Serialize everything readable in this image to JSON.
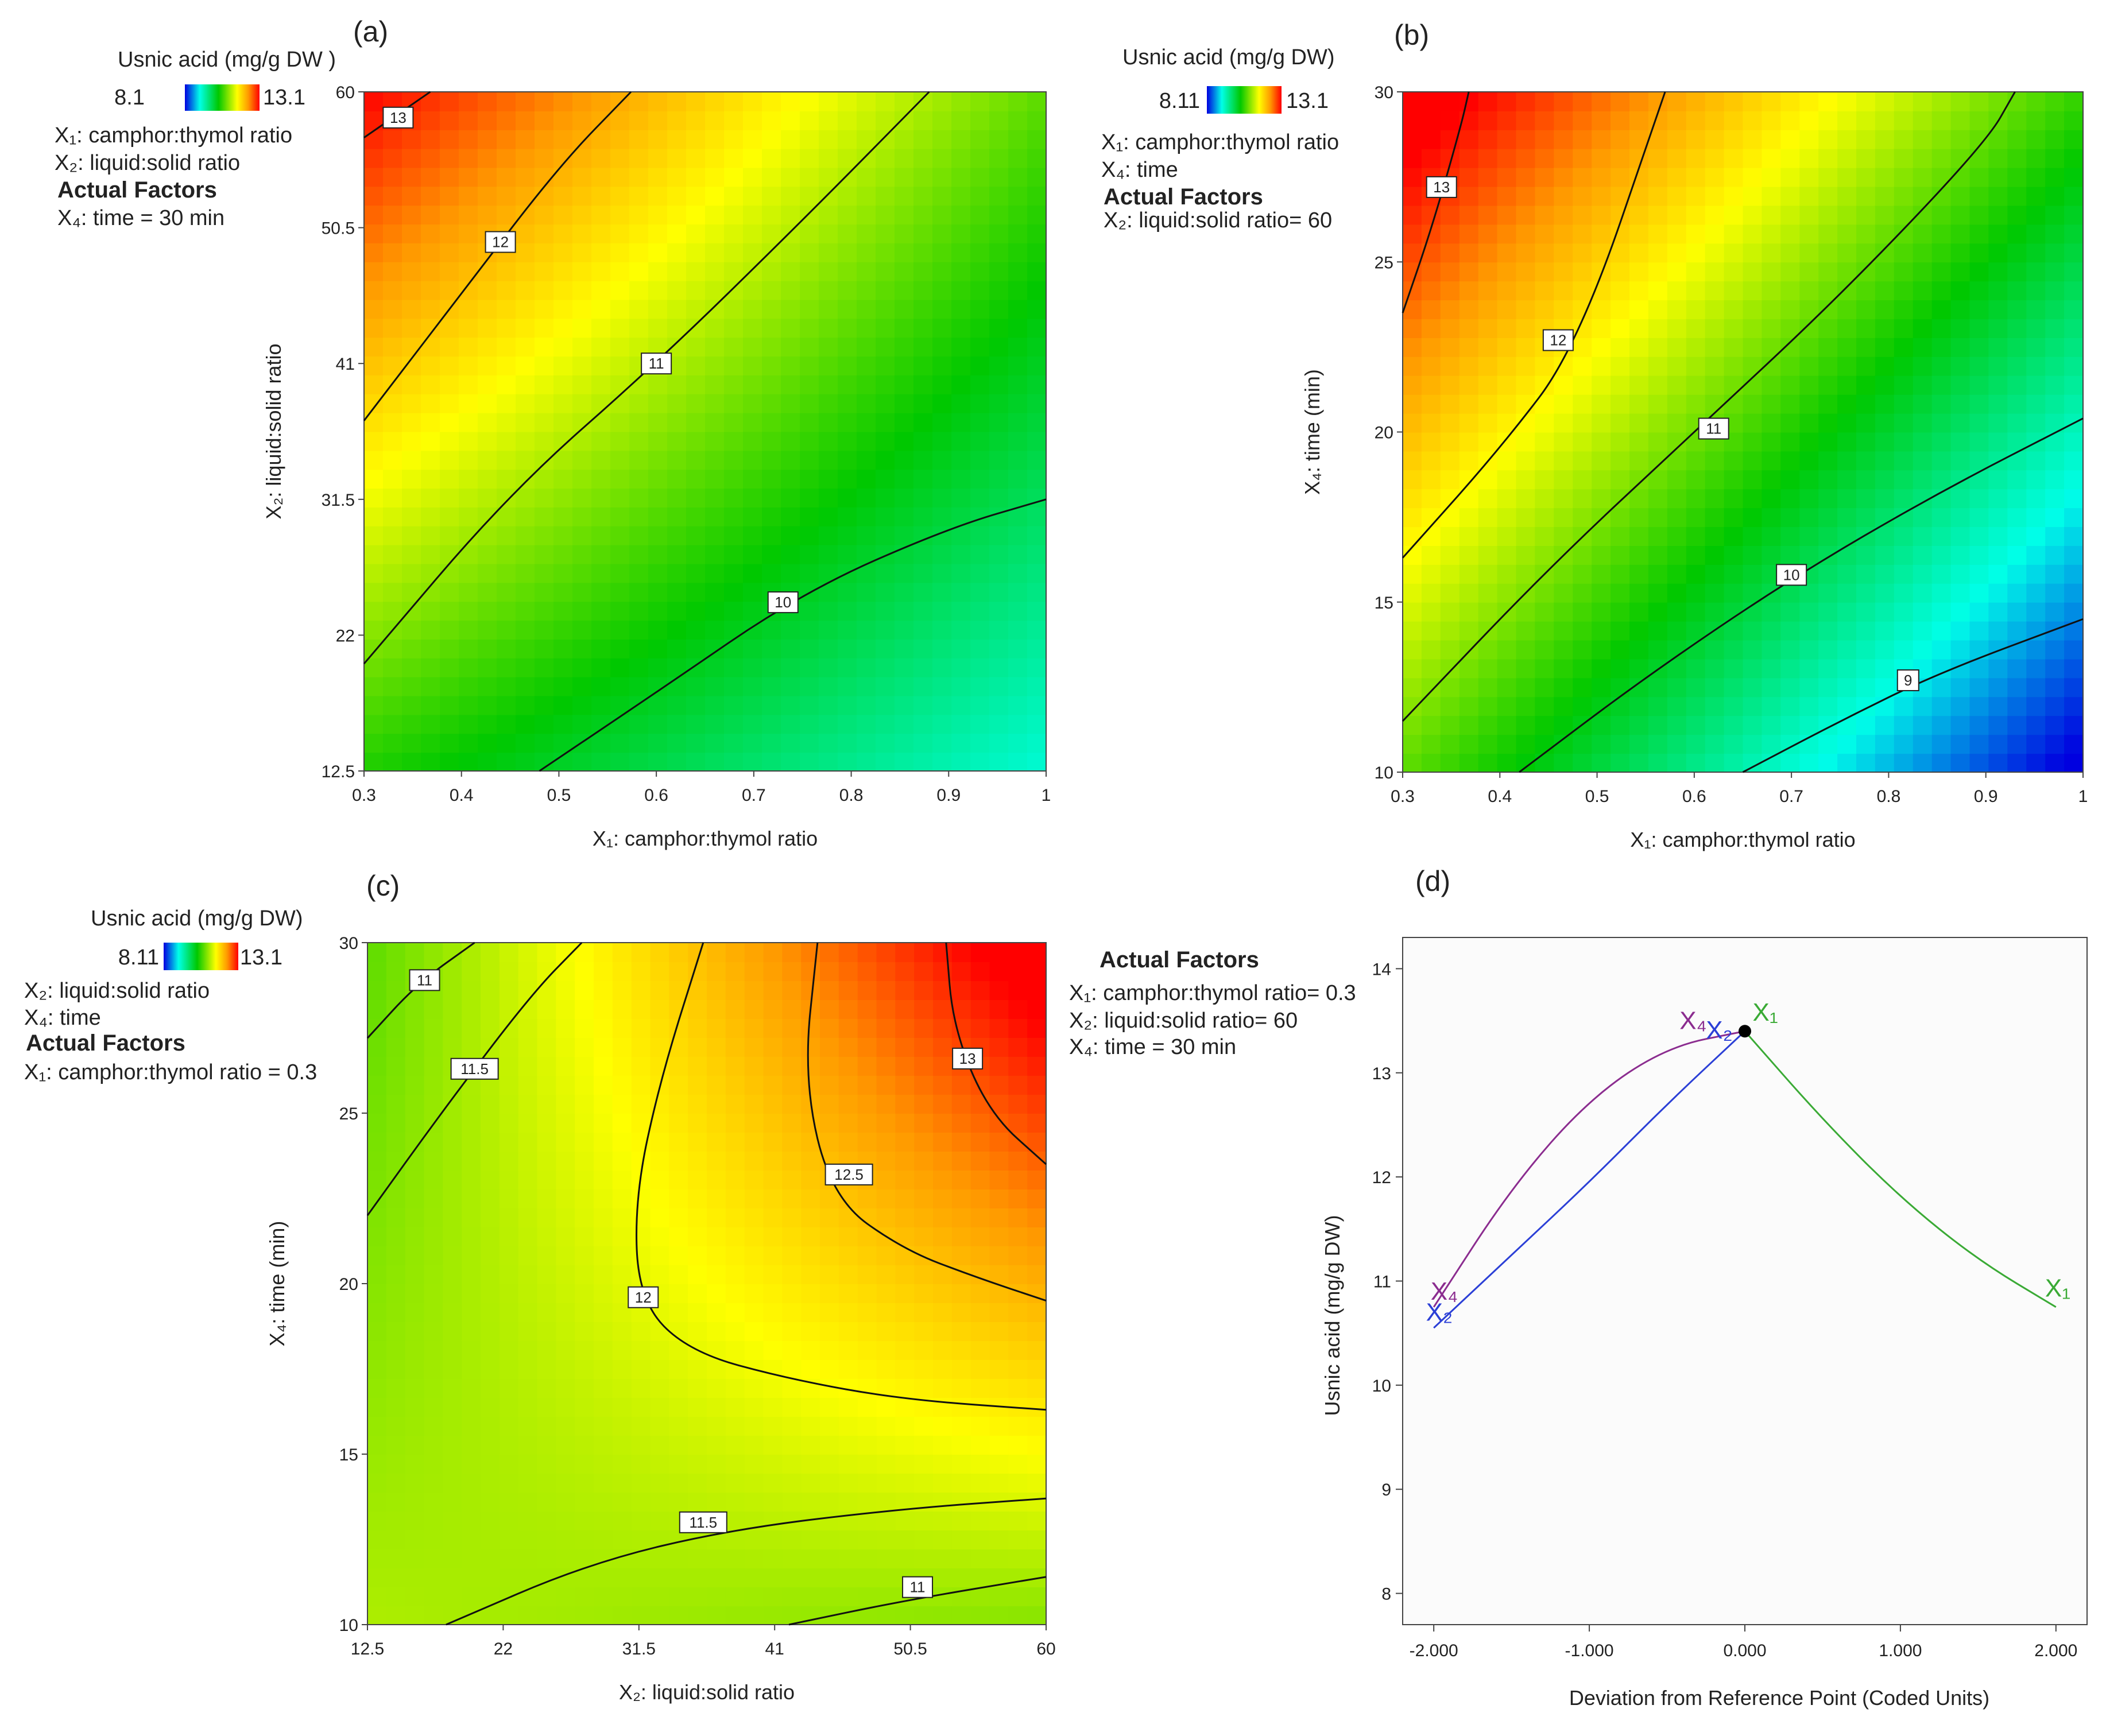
{
  "figure": {
    "colors": {
      "low": "#0000e0",
      "cyan": "#00ffe8",
      "green": "#00c800",
      "yellow": "#ffff00",
      "orange": "#ff9900",
      "high": "#ff0000"
    }
  },
  "chart_data": [
    {
      "panel_label": "(a)",
      "type": "heatmap",
      "legend_title": "Usnic acid (mg/g DW )",
      "legend_min": "8.1",
      "legend_max": "13.1",
      "info_lines": [
        "X₁: camphor:thymol ratio",
        "X₂: liquid:solid ratio"
      ],
      "actual_factors_title": "Actual Factors",
      "actual_factors": [
        "X₄: time = 30 min"
      ],
      "xlabel": "X₁: camphor:thymol ratio",
      "ylabel": "X₂: liquid:solid ratio",
      "xlim": [
        0.3,
        1.0
      ],
      "ylim": [
        12.5,
        60
      ],
      "xticks": [
        "0.3",
        "0.4",
        "0.5",
        "0.6",
        "0.7",
        "0.8",
        "0.9",
        "1"
      ],
      "yticks": [
        "12.5",
        "22",
        "31.5",
        "41",
        "50.5",
        "60"
      ],
      "z_range": [
        8.11,
        13.1
      ],
      "contours": [
        {
          "label": "13",
          "points": [
            [
              0.3,
              56.8
            ],
            [
              0.368,
              60
            ]
          ],
          "label_at": [
            0.335,
            58.2
          ]
        },
        {
          "label": "12",
          "points": [
            [
              0.3,
              37.0
            ],
            [
              0.4,
              45.9
            ],
            [
              0.5,
              54.8
            ],
            [
              0.574,
              60
            ]
          ],
          "label_at": [
            0.44,
            49.5
          ]
        },
        {
          "label": "11",
          "points": [
            [
              0.3,
              20.0
            ],
            [
              0.45,
              32.0
            ],
            [
              0.6,
              41.0
            ],
            [
              0.75,
              51.0
            ],
            [
              0.88,
              60
            ]
          ],
          "label_at": [
            0.6,
            41.0
          ]
        },
        {
          "label": "10",
          "points": [
            [
              0.48,
              12.5
            ],
            [
              0.6,
              18.0
            ],
            [
              0.75,
              25.0
            ],
            [
              0.9,
              29.5
            ],
            [
              1.0,
              31.5
            ]
          ],
          "label_at": [
            0.73,
            24.3
          ]
        }
      ],
      "color_field": [
        [
          0.3,
          12.5,
          10.5
        ],
        [
          0.3,
          60,
          13.1
        ],
        [
          1.0,
          12.5,
          9.2
        ],
        [
          1.0,
          60,
          10.8
        ]
      ]
    },
    {
      "panel_label": "(b)",
      "type": "heatmap",
      "legend_title": "Usnic acid (mg/g DW)",
      "legend_min": "8.11",
      "legend_max": "13.1",
      "info_lines": [
        "X₁: camphor:thymol ratio",
        "X₄: time"
      ],
      "actual_factors_title": "Actual Factors",
      "actual_factors": [
        "X₂: liquid:solid ratio= 60"
      ],
      "xlabel": "X₁: camphor:thymol ratio",
      "ylabel": "X₄: time (min)",
      "xlim": [
        0.3,
        1.0
      ],
      "ylim": [
        10,
        30
      ],
      "xticks": [
        "0.3",
        "0.4",
        "0.5",
        "0.6",
        "0.7",
        "0.8",
        "0.9",
        "1"
      ],
      "yticks": [
        "10",
        "15",
        "20",
        "25",
        "30"
      ],
      "z_range": [
        8.11,
        13.1
      ],
      "contours": [
        {
          "label": "13",
          "points": [
            [
              0.3,
              23.5
            ],
            [
              0.33,
              26.0
            ],
            [
              0.36,
              29.0
            ],
            [
              0.368,
              30
            ]
          ],
          "label_at": [
            0.34,
            27.2
          ]
        },
        {
          "label": "12",
          "points": [
            [
              0.3,
              16.3
            ],
            [
              0.4,
              19.5
            ],
            [
              0.48,
              22.5
            ],
            [
              0.57,
              30
            ]
          ],
          "label_at": [
            0.46,
            22.7
          ]
        },
        {
          "label": "11",
          "points": [
            [
              0.3,
              11.5
            ],
            [
              0.45,
              16.0
            ],
            [
              0.6,
              20.0
            ],
            [
              0.75,
              24.0
            ],
            [
              0.9,
              28.5
            ],
            [
              0.93,
              30
            ]
          ],
          "label_at": [
            0.62,
            20.1
          ]
        },
        {
          "label": "10",
          "points": [
            [
              0.42,
              10.0
            ],
            [
              0.55,
              12.8
            ],
            [
              0.7,
              15.7
            ],
            [
              0.85,
              18.2
            ],
            [
              1.0,
              20.4
            ]
          ],
          "label_at": [
            0.7,
            15.8
          ]
        },
        {
          "label": "9",
          "points": [
            [
              0.65,
              10.0
            ],
            [
              0.75,
              11.5
            ],
            [
              0.85,
              12.9
            ],
            [
              1.0,
              14.5
            ]
          ],
          "label_at": [
            0.82,
            12.7
          ]
        }
      ],
      "color_field": [
        [
          0.3,
          10,
          10.8
        ],
        [
          0.3,
          30,
          13.4
        ],
        [
          1.0,
          10,
          8.0
        ],
        [
          1.0,
          30,
          10.6
        ]
      ]
    },
    {
      "panel_label": "(c)",
      "type": "heatmap",
      "legend_title": "Usnic acid (mg/g DW)",
      "legend_min": "8.11",
      "legend_max": "13.1",
      "info_lines": [
        "X₂: liquid:solid ratio",
        "X₄: time"
      ],
      "actual_factors_title": "Actual Factors",
      "actual_factors": [
        "X₁: camphor:thymol ratio = 0.3"
      ],
      "xlabel": "X₂: liquid:solid ratio",
      "ylabel": "X₄: time (min)",
      "xlim": [
        12.5,
        60
      ],
      "ylim": [
        10,
        30
      ],
      "xticks": [
        "12.5",
        "22",
        "31.5",
        "41",
        "50.5",
        "60"
      ],
      "yticks": [
        "10",
        "15",
        "20",
        "25",
        "30"
      ],
      "z_range": [
        8.11,
        13.1
      ],
      "contours": [
        {
          "label": "11",
          "points": [
            [
              12.5,
              27.2
            ],
            [
              16.0,
              28.8
            ],
            [
              20.0,
              30
            ]
          ],
          "label_at": [
            16.5,
            28.9
          ]
        },
        {
          "label": "11.5",
          "points": [
            [
              12.5,
              22.0
            ],
            [
              18.0,
              25.2
            ],
            [
              24.0,
              28.5
            ],
            [
              27.5,
              30
            ]
          ],
          "label_at": [
            20.0,
            26.3
          ]
        },
        {
          "label": "12",
          "points": [
            [
              36.0,
              30
            ],
            [
              33.0,
              26.0
            ],
            [
              31.2,
              22.5
            ],
            [
              31.5,
              19.5
            ],
            [
              35.0,
              18.0
            ],
            [
              42.0,
              17.2
            ],
            [
              50.0,
              16.6
            ],
            [
              60.0,
              16.3
            ]
          ],
          "label_at": [
            31.8,
            19.6
          ]
        },
        {
          "label": "12.5",
          "points": [
            [
              44.0,
              30
            ],
            [
              43.0,
              26.0
            ],
            [
              45.0,
              22.5
            ],
            [
              50.0,
              21.0
            ],
            [
              55.0,
              20.2
            ],
            [
              60.0,
              19.5
            ]
          ],
          "label_at": [
            46.2,
            23.2
          ]
        },
        {
          "label": "13",
          "points": [
            [
              53.0,
              30
            ],
            [
              53.5,
              27.5
            ],
            [
              56.0,
              25.0
            ],
            [
              60.0,
              23.5
            ]
          ],
          "label_at": [
            54.5,
            26.6
          ]
        },
        {
          "label": "11.5",
          "points": [
            [
              18.0,
              10.0
            ],
            [
              28.0,
              11.8
            ],
            [
              38.0,
              12.8
            ],
            [
              50.0,
              13.4
            ],
            [
              60.0,
              13.7
            ]
          ],
          "label_at": [
            36.0,
            13.0
          ]
        },
        {
          "label": "11",
          "points": [
            [
              42.0,
              10.0
            ],
            [
              50.0,
              10.7
            ],
            [
              60.0,
              11.4
            ]
          ],
          "label_at": [
            51.0,
            11.1
          ]
        }
      ],
      "color_field": [
        [
          12.5,
          10,
          11.2
        ],
        [
          12.5,
          30,
          10.8
        ],
        [
          60,
          10,
          11.0
        ],
        [
          60,
          30,
          13.4
        ]
      ]
    },
    {
      "panel_label": "(d)",
      "type": "line",
      "title": "",
      "actual_factors_title": "Actual Factors",
      "actual_factors": [
        "X₁: camphor:thymol ratio= 0.3",
        "X₂: liquid:solid ratio= 60",
        "X₄: time = 30 min"
      ],
      "xlabel": "Deviation from Reference Point (Coded Units)",
      "ylabel": "Usnic acid (mg/g DW)",
      "xlim": [
        -2.2,
        2.2
      ],
      "ylim": [
        7.7,
        14.3
      ],
      "xticks": [
        "-2.000",
        "-1.000",
        "0.000",
        "1.000",
        "2.000"
      ],
      "yticks": [
        "8",
        "9",
        "10",
        "11",
        "12",
        "13",
        "14"
      ],
      "reference_point": {
        "x": 0.0,
        "y": 13.4
      },
      "series": [
        {
          "name": "X₁",
          "color": "#3aaa35",
          "x": [
            0.0,
            0.5,
            1.0,
            1.5,
            2.0
          ],
          "y": [
            13.4,
            12.55,
            11.8,
            11.2,
            10.75
          ]
        },
        {
          "name": "X₂",
          "color": "#2b3fd6",
          "x": [
            -2.0,
            -1.5,
            -1.0,
            -0.5,
            0.0
          ],
          "y": [
            10.55,
            11.25,
            11.95,
            12.7,
            13.4
          ]
        },
        {
          "name": "X₄",
          "color": "#8b2c8f",
          "x": [
            -2.0,
            -1.5,
            -1.0,
            -0.5,
            0.0
          ],
          "y": [
            10.75,
            11.9,
            12.75,
            13.25,
            13.4
          ]
        }
      ],
      "series_labels": [
        {
          "name": "X₁",
          "color": "#3aaa35",
          "x": 0.05,
          "y": 13.5
        },
        {
          "name": "X₁",
          "color": "#3aaa35",
          "x": 1.93,
          "y": 10.85
        },
        {
          "name": "X₄",
          "color": "#8b2c8f",
          "x": -0.42,
          "y": 13.42
        },
        {
          "name": "X₂",
          "color": "#2b3fd6",
          "x": -0.25,
          "y": 13.33
        },
        {
          "name": "X₄",
          "color": "#8b2c8f",
          "x": -2.02,
          "y": 10.82
        },
        {
          "name": "X₂",
          "color": "#2b3fd6",
          "x": -2.05,
          "y": 10.62
        }
      ]
    }
  ]
}
